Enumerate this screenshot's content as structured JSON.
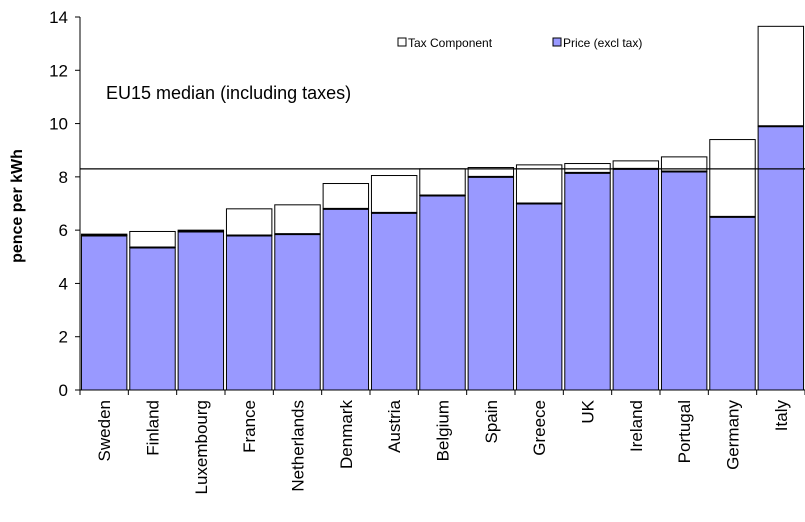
{
  "chart_data": {
    "type": "bar",
    "stacked": true,
    "title": "",
    "xlabel": "",
    "ylabel": "pence per kWh",
    "ylim": [
      0,
      14
    ],
    "yticks": [
      0,
      2,
      4,
      6,
      8,
      10,
      12,
      14
    ],
    "categories": [
      "Sweden",
      "Finland",
      "Luxembourg",
      "France",
      "Netherlands",
      "Denmark",
      "Austria",
      "Belgium",
      "Spain",
      "Greece",
      "UK",
      "Ireland",
      "Portugal",
      "Germany",
      "Italy"
    ],
    "series": [
      {
        "name": "Price (excl tax)",
        "color": "#9999ff",
        "values": [
          5.8,
          5.35,
          5.95,
          5.8,
          5.85,
          6.8,
          6.65,
          7.3,
          8.0,
          7.0,
          8.15,
          8.3,
          8.2,
          6.5,
          9.9
        ]
      },
      {
        "name": "Tax Component",
        "color": "#ffffff",
        "values": [
          0.05,
          0.6,
          0.05,
          1.0,
          1.1,
          0.95,
          1.4,
          1.0,
          0.35,
          1.45,
          0.35,
          0.3,
          0.55,
          2.9,
          3.75
        ]
      }
    ],
    "reference_line": {
      "label": "EU15 median (including taxes)",
      "value": 8.3
    },
    "legend_position": "top-right",
    "grid": false
  }
}
